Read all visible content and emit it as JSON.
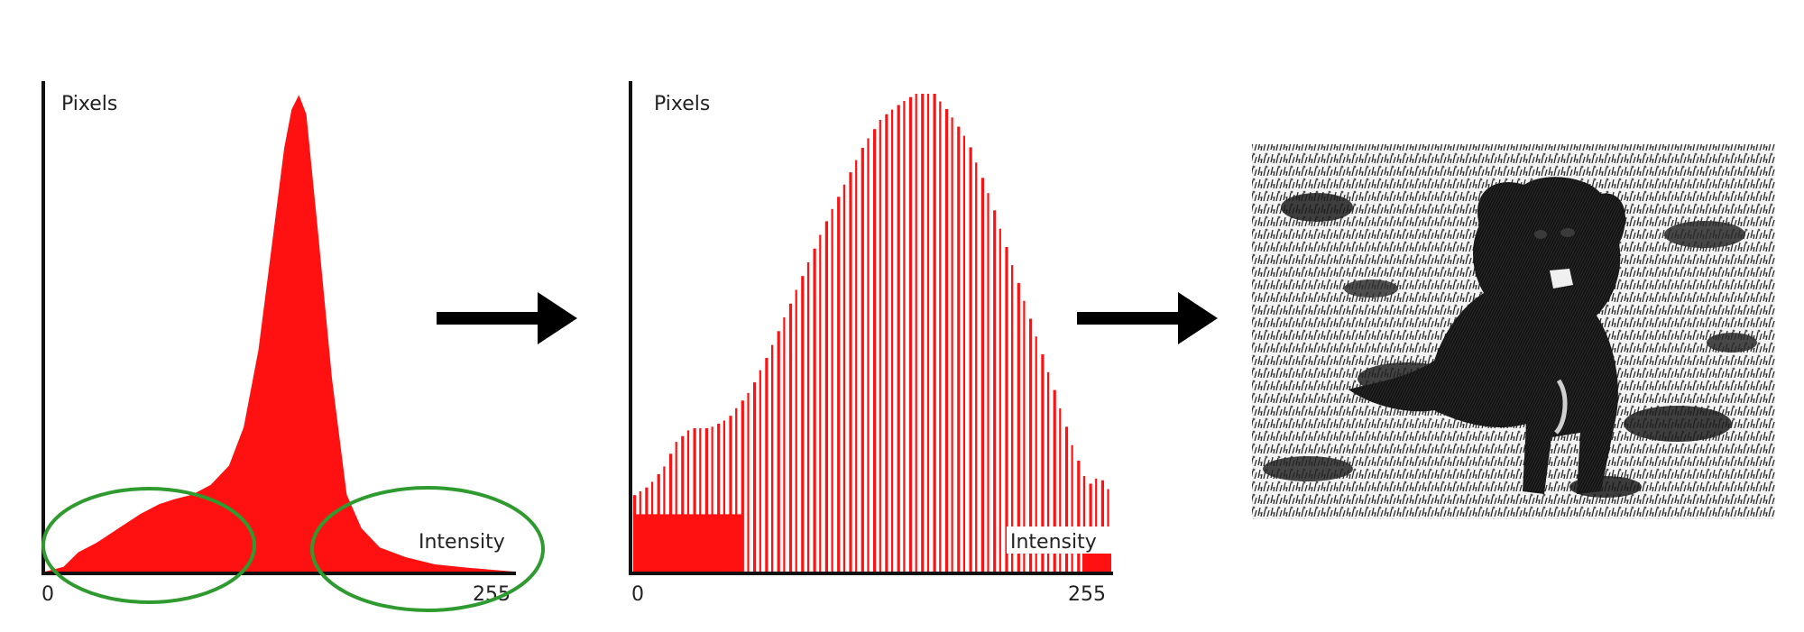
{
  "colors": {
    "histogram_fill": "#ff1111",
    "ellipse": "#2f9a2f",
    "axis": "#111111",
    "arrow": "#000000"
  },
  "histogram_original": {
    "y_label": "Pixels",
    "x_label": "Intensity",
    "x_min_label": "0",
    "x_max_label": "255",
    "curve": [
      [
        0,
        0
      ],
      [
        10,
        0.01
      ],
      [
        18,
        0.04
      ],
      [
        28,
        0.06
      ],
      [
        40,
        0.09
      ],
      [
        52,
        0.12
      ],
      [
        62,
        0.14
      ],
      [
        70,
        0.15
      ],
      [
        80,
        0.16
      ],
      [
        90,
        0.18
      ],
      [
        100,
        0.22
      ],
      [
        108,
        0.3
      ],
      [
        116,
        0.46
      ],
      [
        124,
        0.7
      ],
      [
        130,
        0.88
      ],
      [
        134,
        0.96
      ],
      [
        138,
        0.99
      ],
      [
        142,
        0.95
      ],
      [
        148,
        0.72
      ],
      [
        156,
        0.4
      ],
      [
        164,
        0.16
      ],
      [
        172,
        0.09
      ],
      [
        182,
        0.05
      ],
      [
        196,
        0.03
      ],
      [
        212,
        0.015
      ],
      [
        230,
        0.008
      ],
      [
        255,
        0
      ]
    ],
    "highlighted_regions": [
      "low-intensity-tail",
      "high-intensity-tail"
    ]
  },
  "histogram_equalized": {
    "y_label": "Pixels",
    "x_label": "Intensity",
    "x_min_label": "0",
    "x_max_label": "255",
    "envelope": [
      [
        0,
        0.16
      ],
      [
        8,
        0.18
      ],
      [
        16,
        0.22
      ],
      [
        22,
        0.27
      ],
      [
        30,
        0.3
      ],
      [
        40,
        0.3
      ],
      [
        50,
        0.32
      ],
      [
        62,
        0.38
      ],
      [
        72,
        0.46
      ],
      [
        82,
        0.55
      ],
      [
        92,
        0.64
      ],
      [
        102,
        0.73
      ],
      [
        112,
        0.81
      ],
      [
        122,
        0.89
      ],
      [
        132,
        0.95
      ],
      [
        142,
        0.98
      ],
      [
        150,
        1.0
      ],
      [
        160,
        1.0
      ],
      [
        168,
        0.96
      ],
      [
        178,
        0.9
      ],
      [
        190,
        0.78
      ],
      [
        200,
        0.66
      ],
      [
        212,
        0.52
      ],
      [
        224,
        0.38
      ],
      [
        234,
        0.26
      ],
      [
        242,
        0.18
      ],
      [
        248,
        0.2
      ],
      [
        255,
        0.16
      ]
    ]
  },
  "result_image": {
    "description_icon": "equalized-dog-photo"
  }
}
